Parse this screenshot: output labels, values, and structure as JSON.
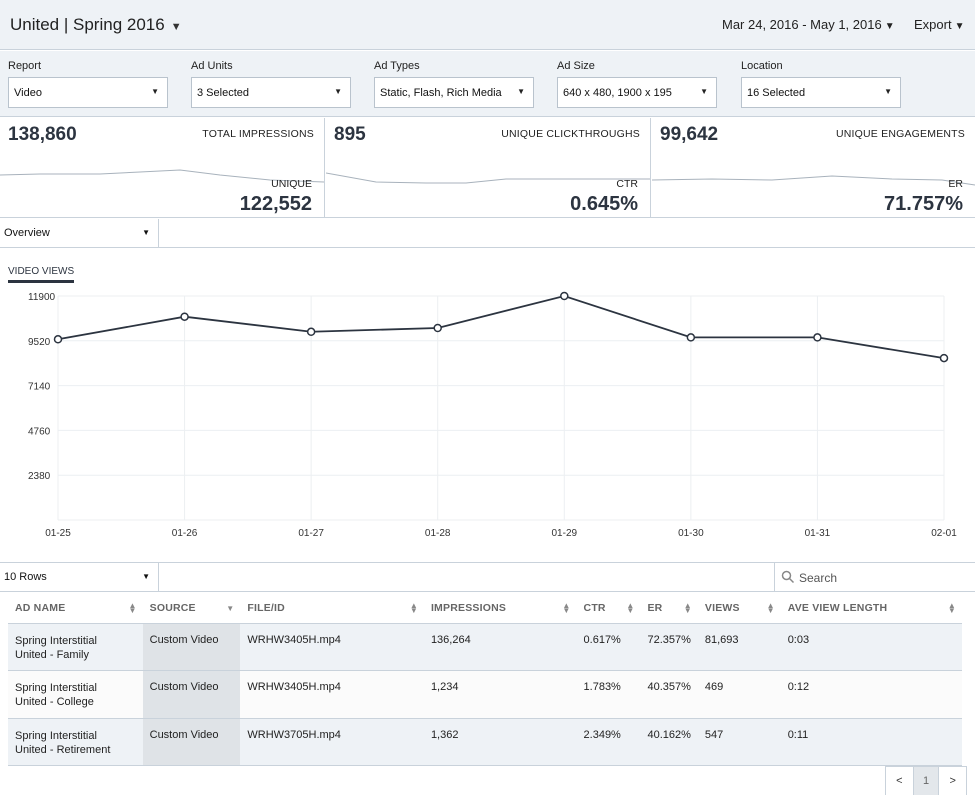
{
  "header": {
    "title": "United | Spring 2016",
    "date_range": "Mar 24, 2016 - May 1, 2016",
    "export_label": "Export"
  },
  "filters": [
    {
      "label": "Report",
      "value": "Video"
    },
    {
      "label": "Ad Units",
      "value": "3 Selected"
    },
    {
      "label": "Ad Types",
      "value": "Static, Flash, Rich Media"
    },
    {
      "label": "Ad Size",
      "value": "640 x 480, 1900 x 195"
    },
    {
      "label": "Location",
      "value": "16 Selected"
    }
  ],
  "metrics": [
    {
      "value": "138,860",
      "label": "TOTAL IMPRESSIONS",
      "sub_label": "UNIQUE",
      "sub_value": "122,552"
    },
    {
      "value": "895",
      "label": "UNIQUE CLICKTHROUGHS",
      "sub_label": "CTR",
      "sub_value": "0.645%"
    },
    {
      "value": "99,642",
      "label": "UNIQUE ENGAGEMENTS",
      "sub_label": "ER",
      "sub_value": "71.757%"
    }
  ],
  "view_select": "Overview",
  "chart_tab": "VIDEO VIEWS",
  "chart_data": {
    "type": "line",
    "categories": [
      "01-25",
      "01-26",
      "01-27",
      "01-28",
      "01-29",
      "01-30",
      "01-31",
      "02-01"
    ],
    "series": [
      {
        "values": [
          9600,
          10800,
          10000,
          10200,
          11900,
          9700,
          9700,
          8600
        ]
      }
    ],
    "y_ticks": [
      2380,
      4760,
      7140,
      9520,
      11900
    ],
    "ylim": [
      0,
      11900
    ],
    "grid": true,
    "line_color": "#2c3440"
  },
  "table_controls": {
    "rows_select": "10 Rows",
    "search_placeholder": "Search"
  },
  "table": {
    "columns": [
      "AD NAME",
      "SOURCE",
      "FILE/ID",
      "IMPRESSIONS",
      "CTR",
      "ER",
      "VIEWS",
      "AVE VIEW LENGTH"
    ],
    "rows": [
      {
        "ad_name_1": "Spring Interstitial",
        "ad_name_2": "United - Family",
        "source": "Custom Video",
        "file": "WRHW3405H.mp4",
        "impressions": "136,264",
        "ctr": "0.617%",
        "er": "72.357%",
        "views": "81,693",
        "avl": "0:03"
      },
      {
        "ad_name_1": "Spring Interstitial",
        "ad_name_2": "United - College",
        "source": "Custom Video",
        "file": "WRHW3405H.mp4",
        "impressions": "1,234",
        "ctr": "1.783%",
        "er": "40.357%",
        "views": "469",
        "avl": "0:12"
      },
      {
        "ad_name_1": "Spring Interstitial",
        "ad_name_2": "United - Retirement",
        "source": "Custom Video",
        "file": "WRHW3705H.mp4",
        "impressions": "1,362",
        "ctr": "2.349%",
        "er": "40.162%",
        "views": "547",
        "avl": "0:11"
      }
    ]
  },
  "pager": {
    "prev": "<",
    "current": "1",
    "next": ">"
  }
}
